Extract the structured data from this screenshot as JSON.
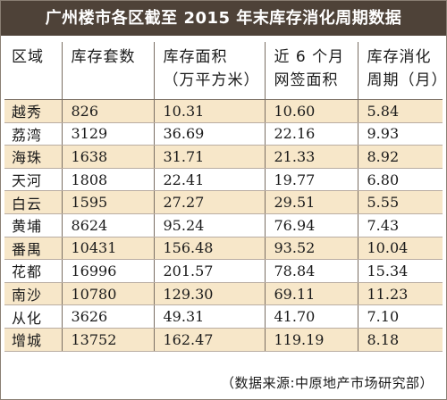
{
  "title": "广州楼市各区截至 2015 年末库存消化周期数据",
  "source": "（数据来源:中原地产市场研究部）",
  "chart_data": {
    "type": "table",
    "title": "广州楼市各区截至 2015 年末库存消化周期数据",
    "columns": [
      {
        "line1": "区域",
        "line2": ""
      },
      {
        "line1": "库存套数",
        "line2": ""
      },
      {
        "line1": "库存面积",
        "line2": "（万平方米）"
      },
      {
        "line1": "近 6 个月",
        "line2": "网签面积"
      },
      {
        "line1": "库存消化",
        "line2": "周期（月）"
      }
    ],
    "rows": [
      [
        "越秀",
        "826",
        "10.31",
        "10.60",
        "5.84"
      ],
      [
        "荔湾",
        "3129",
        "36.69",
        "22.16",
        "9.93"
      ],
      [
        "海珠",
        "1638",
        "31.71",
        "21.33",
        "8.92"
      ],
      [
        "天河",
        "1808",
        "22.41",
        "19.77",
        "6.80"
      ],
      [
        "白云",
        "1595",
        "27.27",
        "29.51",
        "5.55"
      ],
      [
        "黄埔",
        "8624",
        "95.24",
        "76.94",
        "7.43"
      ],
      [
        "番禺",
        "10431",
        "156.48",
        "93.52",
        "10.04"
      ],
      [
        "花都",
        "16996",
        "201.57",
        "78.84",
        "15.34"
      ],
      [
        "南沙",
        "10780",
        "129.30",
        "69.11",
        "11.23"
      ],
      [
        "从化",
        "3626",
        "49.31",
        "41.70",
        "7.10"
      ],
      [
        "增城",
        "13752",
        "162.47",
        "119.19",
        "8.18"
      ]
    ],
    "colors": {
      "title_bg": "#4e4238",
      "stripe": "#f7e7c9"
    }
  }
}
